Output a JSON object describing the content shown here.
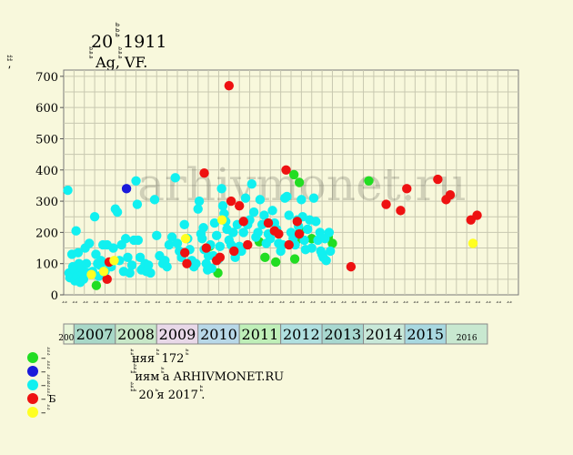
{
  "header": {
    "title": "20 ꙺꙺꙺ 1911",
    "subtitle": "ꙺꙺꙺ Ag,ꙺꙺꙺ VF."
  },
  "watermark": "arhivmonet.ru",
  "legend": [
    {
      "label": "– ꙺꙺꙺ",
      "color": "#22dd22"
    },
    {
      "label": "– ꙺꙺꙺ",
      "color": "#1a1adb"
    },
    {
      "label": "– ꙺꙺꙺ",
      "color": "#11f0f0"
    },
    {
      "label": "– ꙺꙺꙺꙺꙺБ",
      "color": "#ee1111"
    },
    {
      "label": "– ꙺꙺ",
      "color": "#ffff22"
    }
  ],
  "notes": [
    "ꙺꙺняя ꙺꙺ 172 ꙺꙺ",
    "ꙺ ꙺꙺꙺꙺиям ꙺꙺа ARHIVMONET.RU",
    "ꙺꙺꙺ ꙺ 20 ꙺя 2017 ꙺꙺ."
  ],
  "chart_data": {
    "type": "scatter",
    "title": "20 ꙺꙺꙺ 1911",
    "subtitle": "ꙺꙺꙺ Ag,ꙺꙺꙺ VF.",
    "ylabel": "ꙺꙺ,ꙺꙺ",
    "ylim": [
      0,
      720
    ],
    "yticks": [
      0,
      100,
      200,
      300,
      400,
      500,
      600,
      700
    ],
    "xlim": [
      2006.0,
      2017.0
    ],
    "grid": true,
    "quarter_labels": [
      "ꙺꙺ",
      "ꙺꙺ",
      "ꙺꙺ",
      "ꙺꙺ",
      "ꙺꙺ",
      "ꙺꙺ",
      "ꙺꙺ",
      "ꙺꙺ",
      "ꙺꙺ",
      "ꙺꙺ",
      "ꙺꙺ",
      "ꙺꙺ",
      "ꙺꙺ",
      "ꙺꙺ",
      "ꙺꙺ",
      "ꙺꙺ",
      "ꙺꙺ",
      "ꙺꙺ",
      "ꙺꙺ",
      "ꙺꙺ",
      "ꙺꙺ",
      "ꙺꙺ",
      "ꙺꙺ",
      "ꙺꙺ",
      "ꙺꙺ",
      "ꙺꙺ",
      "ꙺꙺ",
      "ꙺꙺ",
      "ꙺꙺ",
      "ꙺꙺ",
      "ꙺꙺ",
      "ꙺꙺ",
      "ꙺꙺ",
      "ꙺꙺ",
      "ꙺꙺ",
      "ꙺꙺ",
      "ꙺꙺ",
      "ꙺꙺ",
      "ꙺꙺ",
      "ꙺꙺ",
      "ꙺꙺ",
      "ꙺꙺ",
      "ꙺꙺ",
      "ꙺꙺ"
    ],
    "years": [
      {
        "label": "2006",
        "start": 2006.0,
        "end": 2006.25,
        "color": "#e8f5d8",
        "small": true
      },
      {
        "label": "2007",
        "start": 2006.25,
        "end": 2007.25,
        "color": "#a8d8c8",
        "small": false
      },
      {
        "label": "2008",
        "start": 2007.25,
        "end": 2008.25,
        "color": "#c8e8c8",
        "small": false
      },
      {
        "label": "2009",
        "start": 2008.25,
        "end": 2009.25,
        "color": "#e8d8e8",
        "small": false
      },
      {
        "label": "2010",
        "start": 2009.25,
        "end": 2010.25,
        "color": "#b8d8e8",
        "small": false
      },
      {
        "label": "2011",
        "start": 2010.25,
        "end": 2011.25,
        "color": "#bfefb8",
        "small": false
      },
      {
        "label": "2012",
        "start": 2011.25,
        "end": 2012.25,
        "color": "#b0e0e0",
        "small": false
      },
      {
        "label": "2013",
        "start": 2012.25,
        "end": 2013.25,
        "color": "#a8d8d0",
        "small": false
      },
      {
        "label": "2014",
        "start": 2013.25,
        "end": 2014.25,
        "color": "#c8e8d8",
        "small": false
      },
      {
        "label": "2015",
        "start": 2014.25,
        "end": 2015.25,
        "color": "#a8d8e0",
        "small": false
      },
      {
        "label": "2016",
        "start": 2015.25,
        "end": 2016.25,
        "color": "#c8e8d0",
        "small": true
      }
    ],
    "series": [
      {
        "name": "– ꙺꙺꙺ",
        "color": "#22dd22",
        "points": [
          [
            2006.79,
            30
          ],
          [
            2009.53,
            155
          ],
          [
            2009.73,
            70
          ],
          [
            2010.73,
            170
          ],
          [
            2010.87,
            120
          ],
          [
            2011.13,
            105
          ],
          [
            2011.57,
            385
          ],
          [
            2011.59,
            115
          ],
          [
            2011.63,
            175
          ],
          [
            2011.7,
            360
          ],
          [
            2011.72,
            205
          ],
          [
            2012.0,
            180
          ],
          [
            2012.4,
            185
          ],
          [
            2012.5,
            165
          ],
          [
            2013.38,
            365
          ]
        ]
      },
      {
        "name": "– ꙺꙺꙺ",
        "color": "#1a1adb",
        "points": [
          [
            2007.52,
            340
          ]
        ]
      },
      {
        "name": "– ꙺꙺꙺ",
        "color": "#11f0f0",
        "points": [
          [
            2006.1,
            335
          ],
          [
            2006.13,
            70
          ],
          [
            2006.15,
            55
          ],
          [
            2006.2,
            130
          ],
          [
            2006.22,
            90
          ],
          [
            2006.25,
            80
          ],
          [
            2006.27,
            45
          ],
          [
            2006.3,
            205
          ],
          [
            2006.32,
            60
          ],
          [
            2006.35,
            135
          ],
          [
            2006.37,
            100
          ],
          [
            2006.4,
            40
          ],
          [
            2006.42,
            75
          ],
          [
            2006.45,
            85
          ],
          [
            2006.48,
            50
          ],
          [
            2006.52,
            150
          ],
          [
            2006.55,
            100
          ],
          [
            2006.58,
            70
          ],
          [
            2006.62,
            165
          ],
          [
            2006.7,
            75
          ],
          [
            2006.75,
            250
          ],
          [
            2006.78,
            130
          ],
          [
            2006.82,
            100
          ],
          [
            2006.85,
            60
          ],
          [
            2006.88,
            95
          ],
          [
            2006.9,
            110
          ],
          [
            2006.95,
            160
          ],
          [
            2007.0,
            75
          ],
          [
            2007.05,
            160
          ],
          [
            2007.1,
            100
          ],
          [
            2007.15,
            90
          ],
          [
            2007.2,
            150
          ],
          [
            2007.25,
            275
          ],
          [
            2007.3,
            265
          ],
          [
            2007.35,
            110
          ],
          [
            2007.4,
            160
          ],
          [
            2007.45,
            75
          ],
          [
            2007.5,
            180
          ],
          [
            2007.55,
            120
          ],
          [
            2007.6,
            70
          ],
          [
            2007.65,
            95
          ],
          [
            2007.7,
            175
          ],
          [
            2007.75,
            365
          ],
          [
            2007.78,
            290
          ],
          [
            2007.8,
            175
          ],
          [
            2007.85,
            120
          ],
          [
            2007.88,
            80
          ],
          [
            2007.92,
            85
          ],
          [
            2007.97,
            100
          ],
          [
            2008.0,
            75
          ],
          [
            2008.05,
            95
          ],
          [
            2008.1,
            70
          ],
          [
            2008.2,
            305
          ],
          [
            2008.25,
            190
          ],
          [
            2008.32,
            125
          ],
          [
            2008.4,
            100
          ],
          [
            2008.45,
            110
          ],
          [
            2008.5,
            90
          ],
          [
            2008.55,
            160
          ],
          [
            2008.62,
            185
          ],
          [
            2008.7,
            375
          ],
          [
            2008.75,
            165
          ],
          [
            2008.8,
            140
          ],
          [
            2008.85,
            120
          ],
          [
            2008.92,
            225
          ],
          [
            2009.0,
            180
          ],
          [
            2009.05,
            145
          ],
          [
            2009.1,
            110
          ],
          [
            2009.15,
            90
          ],
          [
            2009.2,
            100
          ],
          [
            2009.25,
            275
          ],
          [
            2009.28,
            300
          ],
          [
            2009.32,
            195
          ],
          [
            2009.35,
            180
          ],
          [
            2009.38,
            215
          ],
          [
            2009.4,
            145
          ],
          [
            2009.45,
            100
          ],
          [
            2009.48,
            80
          ],
          [
            2009.5,
            125
          ],
          [
            2009.55,
            160
          ],
          [
            2009.58,
            85
          ],
          [
            2009.62,
            125
          ],
          [
            2009.65,
            230
          ],
          [
            2009.7,
            190
          ],
          [
            2009.75,
            115
          ],
          [
            2009.78,
            155
          ],
          [
            2009.82,
            340
          ],
          [
            2009.85,
            285
          ],
          [
            2009.88,
            260
          ],
          [
            2009.92,
            235
          ],
          [
            2009.95,
            210
          ],
          [
            2010.0,
            175
          ],
          [
            2010.05,
            160
          ],
          [
            2010.1,
            200
          ],
          [
            2010.15,
            120
          ],
          [
            2010.2,
            225
          ],
          [
            2010.25,
            155
          ],
          [
            2010.3,
            140
          ],
          [
            2010.35,
            200
          ],
          [
            2010.4,
            310
          ],
          [
            2010.45,
            225
          ],
          [
            2010.5,
            240
          ],
          [
            2010.55,
            355
          ],
          [
            2010.6,
            265
          ],
          [
            2010.65,
            185
          ],
          [
            2010.7,
            200
          ],
          [
            2010.75,
            305
          ],
          [
            2010.8,
            225
          ],
          [
            2010.85,
            255
          ],
          [
            2010.9,
            165
          ],
          [
            2010.95,
            195
          ],
          [
            2011.0,
            180
          ],
          [
            2011.05,
            270
          ],
          [
            2011.1,
            230
          ],
          [
            2011.15,
            210
          ],
          [
            2011.2,
            165
          ],
          [
            2011.25,
            140
          ],
          [
            2011.3,
            160
          ],
          [
            2011.35,
            310
          ],
          [
            2011.4,
            315
          ],
          [
            2011.45,
            255
          ],
          [
            2011.5,
            200
          ],
          [
            2011.55,
            180
          ],
          [
            2011.6,
            160
          ],
          [
            2011.65,
            240
          ],
          [
            2011.68,
            220
          ],
          [
            2011.75,
            305
          ],
          [
            2011.78,
            250
          ],
          [
            2011.82,
            175
          ],
          [
            2011.85,
            145
          ],
          [
            2011.9,
            210
          ],
          [
            2011.95,
            240
          ],
          [
            2012.0,
            150
          ],
          [
            2012.05,
            310
          ],
          [
            2012.1,
            235
          ],
          [
            2012.15,
            175
          ],
          [
            2012.2,
            200
          ],
          [
            2012.22,
            140
          ],
          [
            2012.25,
            130
          ],
          [
            2012.28,
            120
          ],
          [
            2012.32,
            180
          ],
          [
            2012.35,
            110
          ],
          [
            2012.42,
            200
          ],
          [
            2012.45,
            140
          ]
        ]
      },
      {
        "name": "– ꙺꙺꙺꙺꙺБ",
        "color": "#ee1111",
        "points": [
          [
            2007.05,
            50
          ],
          [
            2007.1,
            105
          ],
          [
            2008.93,
            135
          ],
          [
            2008.98,
            100
          ],
          [
            2009.4,
            390
          ],
          [
            2009.45,
            150
          ],
          [
            2009.7,
            110
          ],
          [
            2009.78,
            120
          ],
          [
            2010.0,
            670
          ],
          [
            2010.05,
            300
          ],
          [
            2010.12,
            140
          ],
          [
            2010.25,
            285
          ],
          [
            2010.35,
            235
          ],
          [
            2010.45,
            160
          ],
          [
            2010.95,
            230
          ],
          [
            2011.1,
            205
          ],
          [
            2011.2,
            195
          ],
          [
            2011.38,
            400
          ],
          [
            2011.45,
            160
          ],
          [
            2011.65,
            235
          ],
          [
            2011.7,
            195
          ],
          [
            2012.95,
            90
          ],
          [
            2013.8,
            290
          ],
          [
            2014.15,
            270
          ],
          [
            2014.3,
            340
          ],
          [
            2015.05,
            370
          ],
          [
            2015.25,
            305
          ],
          [
            2015.35,
            320
          ],
          [
            2015.85,
            240
          ],
          [
            2016.0,
            255
          ]
        ]
      },
      {
        "name": "– ꙺꙺ",
        "color": "#ffff22",
        "points": [
          [
            2006.67,
            65
          ],
          [
            2006.97,
            75
          ],
          [
            2007.22,
            110
          ],
          [
            2008.95,
            180
          ],
          [
            2009.83,
            240
          ],
          [
            2015.9,
            165
          ]
        ]
      }
    ]
  }
}
